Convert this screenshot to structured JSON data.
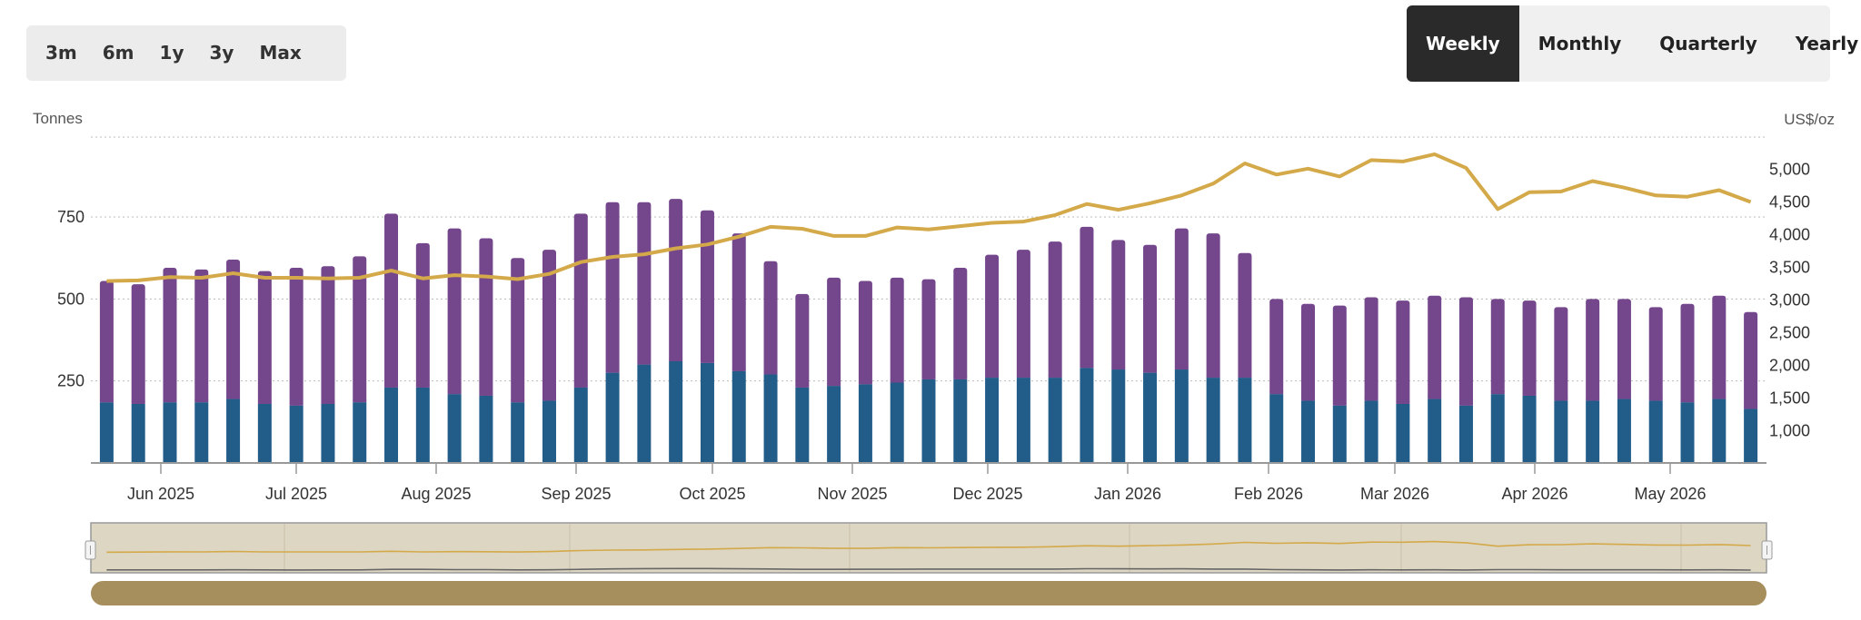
{
  "range_buttons": [
    "3m",
    "6m",
    "1y",
    "3y",
    "Max"
  ],
  "period_buttons": [
    "Weekly",
    "Monthly",
    "Quarterly",
    "Yearly"
  ],
  "active_period": "Weekly",
  "colors": {
    "bar_top": "#74468c",
    "bar_bottom": "#225d8a",
    "price_line": "#d4a94a",
    "navigator_bg": "#ddd6c2",
    "scrollbar": "#a68f5c"
  },
  "chart_data": {
    "type": "bar",
    "left_axis_label": "Tonnes",
    "right_axis_label": "US$/oz",
    "left_ticks": [
      250,
      500,
      750
    ],
    "right_ticks": [
      "1,000",
      "1,500",
      "2,000",
      "2,500",
      "3,000",
      "3,500",
      "4,000",
      "4,500",
      "5,000"
    ],
    "ylim_left": [
      0,
      1000
    ],
    "ylim_right": [
      500,
      5500
    ],
    "x_labels": [
      "Jun 2025",
      "Jul 2025",
      "Aug 2025",
      "Sep 2025",
      "Oct 2025",
      "Nov 2025",
      "Dec 2025",
      "Jan 2026",
      "Feb 2026",
      "Mar 2026",
      "Apr 2026",
      "May 2026"
    ],
    "series": [
      {
        "type": "bar",
        "stack": "bottom",
        "values": [
          185,
          180,
          185,
          185,
          195,
          180,
          175,
          180,
          185,
          230,
          230,
          210,
          205,
          185,
          190,
          230,
          275,
          300,
          310,
          305,
          280,
          270,
          230,
          235,
          240,
          245,
          255,
          255,
          260,
          260,
          260,
          290,
          285,
          275,
          285,
          260,
          260,
          210,
          190,
          175,
          190,
          180,
          195,
          175,
          210,
          205,
          190,
          190,
          195,
          190,
          185,
          195,
          165
        ]
      },
      {
        "type": "bar",
        "stack": "total",
        "values": [
          555,
          545,
          595,
          590,
          620,
          585,
          595,
          600,
          630,
          760,
          670,
          715,
          685,
          625,
          650,
          760,
          795,
          795,
          805,
          770,
          700,
          615,
          515,
          565,
          555,
          565,
          560,
          595,
          635,
          650,
          675,
          720,
          680,
          665,
          715,
          700,
          640,
          500,
          485,
          480,
          505,
          495,
          510,
          505,
          500,
          495,
          475,
          500,
          500,
          475,
          485,
          510,
          460
        ]
      },
      {
        "type": "line",
        "axis": "right",
        "values": [
          3290,
          3300,
          3350,
          3340,
          3410,
          3340,
          3340,
          3330,
          3340,
          3450,
          3330,
          3380,
          3360,
          3320,
          3400,
          3580,
          3660,
          3700,
          3790,
          3850,
          3970,
          4120,
          4090,
          3980,
          3980,
          4110,
          4080,
          4130,
          4180,
          4200,
          4300,
          4470,
          4380,
          4480,
          4600,
          4780,
          5090,
          4920,
          5010,
          4890,
          5140,
          5120,
          5230,
          5020,
          4390,
          4650,
          4660,
          4820,
          4720,
          4600,
          4580,
          4680,
          4500
        ]
      }
    ]
  }
}
